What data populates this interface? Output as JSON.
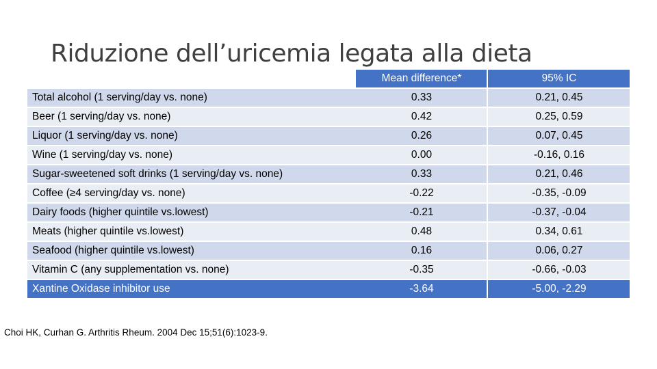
{
  "title": "Riduzione dell’uricemia legata alla dieta",
  "table": {
    "headers": [
      "",
      "Mean difference*",
      "95% IC"
    ],
    "rows": [
      {
        "label": "Total alcohol  (1 serving/day vs. none)",
        "mean": "0.33",
        "ci": "0.21, 0.45"
      },
      {
        "label": "Beer (1 serving/day vs. none)",
        "mean": "0.42",
        "ci": "0.25, 0.59"
      },
      {
        "label": "Liquor (1 serving/day vs. none)",
        "mean": "0.26",
        "ci": "0.07, 0.45"
      },
      {
        "label": "Wine (1 serving/day vs. none)",
        "mean": "0.00",
        "ci": "-0.16, 0.16"
      },
      {
        "label": "Sugar-sweetened soft drinks (1 serving/day vs. none)",
        "mean": "0.33",
        "ci": "0.21, 0.46"
      },
      {
        "label": "Coffee (≥4 serving/day vs. none)",
        "mean": "-0.22",
        "ci": "-0.35, -0.09"
      },
      {
        "label": "Dairy foods (higher quintile vs.lowest)",
        "mean": "-0.21",
        "ci": "-0.37, -0.04"
      },
      {
        "label": "Meats (higher quintile vs.lowest)",
        "mean": "0.48",
        "ci": "0.34, 0.61"
      },
      {
        "label": "Seafood (higher quintile vs.lowest)",
        "mean": "0.16",
        "ci": "0.06, 0.27"
      },
      {
        "label": "Vitamin C (any supplementation vs. none)",
        "mean": "-0.35",
        "ci": "-0.66, -0.03"
      },
      {
        "label": "Xantine Oxidase inhibitor use",
        "mean": "-3.64",
        "ci": "-5.00, -2.29"
      }
    ]
  },
  "citation": "Choi HK, Curhan G. Arthritis Rheum. 2004 Dec 15;51(6):1023-9.",
  "colors": {
    "header_bg": "#4472c4",
    "row_dark": "#d0d8eb",
    "row_light": "#e9edf4"
  }
}
